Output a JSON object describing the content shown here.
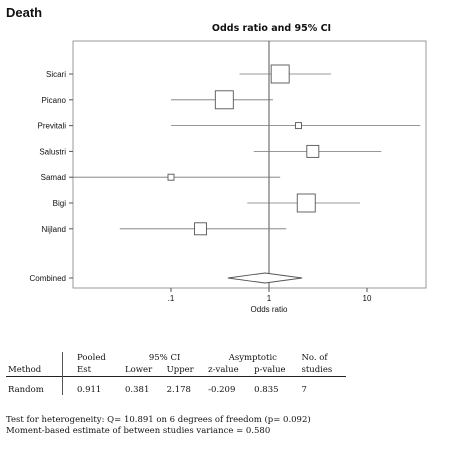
{
  "page_title": "Death",
  "chart_data": {
    "type": "forest",
    "title": "Odds ratio and 95% CI",
    "xlabel": "Odds ratio",
    "xscale": "log",
    "xlim": [
      0.01,
      40
    ],
    "xticks": [
      ".1",
      "1",
      "10"
    ],
    "xtick_values": [
      0.1,
      1,
      10
    ],
    "reference_line": 1,
    "studies": [
      {
        "name": "Sicari",
        "or": 1.3,
        "lower": 0.5,
        "upper": 4.3,
        "weight": 3
      },
      {
        "name": "Picano",
        "or": 0.35,
        "lower": 0.1,
        "upper": 1.1,
        "weight": 3
      },
      {
        "name": "Previtali",
        "or": 2.0,
        "lower": 0.1,
        "upper": 35,
        "weight": 1
      },
      {
        "name": "Salustri",
        "or": 2.8,
        "lower": 0.7,
        "upper": 14,
        "weight": 2
      },
      {
        "name": "Samad",
        "or": 0.1,
        "lower": 0.01,
        "upper": 1.3,
        "weight": 1
      },
      {
        "name": "Bigi",
        "or": 2.4,
        "lower": 0.6,
        "upper": 8.5,
        "weight": 3
      },
      {
        "name": "Nijland",
        "or": 0.2,
        "lower": 0.03,
        "upper": 1.5,
        "weight": 2
      }
    ],
    "combined": {
      "name": "Combined",
      "or": 0.911,
      "lower": 0.381,
      "upper": 2.178
    }
  },
  "stats": {
    "headers": {
      "method": "Method",
      "pooled_top": "Pooled",
      "pooled_bottom": "Est",
      "ci_top": "95% CI",
      "lower": "Lower",
      "upper": "Upper",
      "asym_top": "Asymptotic",
      "zvalue": "z-value",
      "pvalue": "p-value",
      "nstudies_top": "No. of",
      "nstudies_bottom": "studies"
    },
    "row": {
      "method": "Random",
      "est": "0.911",
      "lower": "0.381",
      "upper": "2.178",
      "z": "-0.209",
      "p": "0.835",
      "n": "7"
    }
  },
  "footer": {
    "line1": "Test for heterogeneity: Q= 10.891 on 6 degrees of freedom (p= 0.092)",
    "line2": "Moment-based estimate of between studies variance =  0.580"
  }
}
